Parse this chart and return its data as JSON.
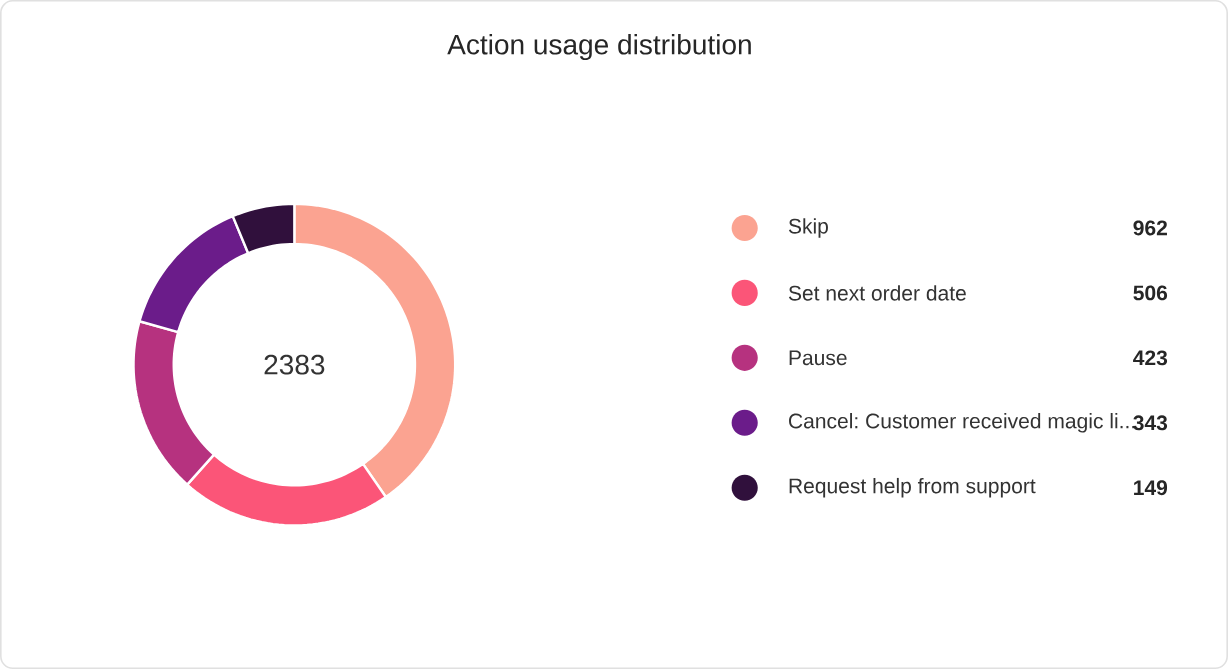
{
  "chart_data": {
    "type": "donut",
    "title": "Action usage distribution",
    "categories": [
      "Skip",
      "Set next order date",
      "Pause",
      "Cancel: Customer received magic li...",
      "Request help from support"
    ],
    "values": [
      962,
      506,
      423,
      343,
      149
    ],
    "colors": [
      "#fba391",
      "#fb5578",
      "#b6327f",
      "#6b1c8a",
      "#30103c"
    ],
    "annotations": [
      "2383"
    ],
    "data_labels": true,
    "legend": "right"
  }
}
